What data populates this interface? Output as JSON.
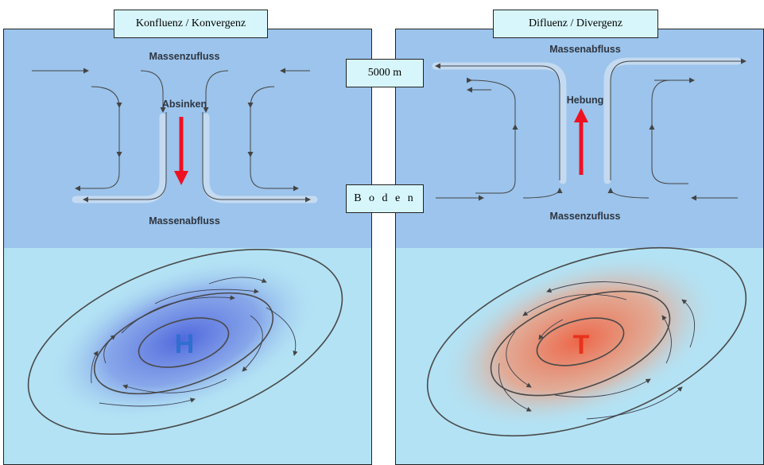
{
  "left": {
    "tab_title": "Konfluenz / Konvergenz",
    "top_flow": "Massenzufluss",
    "middle_label": "Absinken",
    "bottom_flow": "Massenabfluss",
    "center_letter": "H",
    "center_color": "#2f6fd0"
  },
  "right": {
    "tab_title": "Difluenz / Divergenz",
    "top_flow": "Massenabfluss",
    "middle_label": "Hebung",
    "bottom_flow": "Massenzufluss",
    "center_letter": "T",
    "center_color": "#e8331c"
  },
  "levels": {
    "top": "5000 m",
    "ground": "B o d e n"
  },
  "colors": {
    "upper_bg": "#9cc4ec",
    "lower_bg": "#b3e2f4",
    "arrow_red": "#ee1122",
    "high_blob": "#4b62dc",
    "low_blob": "#f07048"
  }
}
